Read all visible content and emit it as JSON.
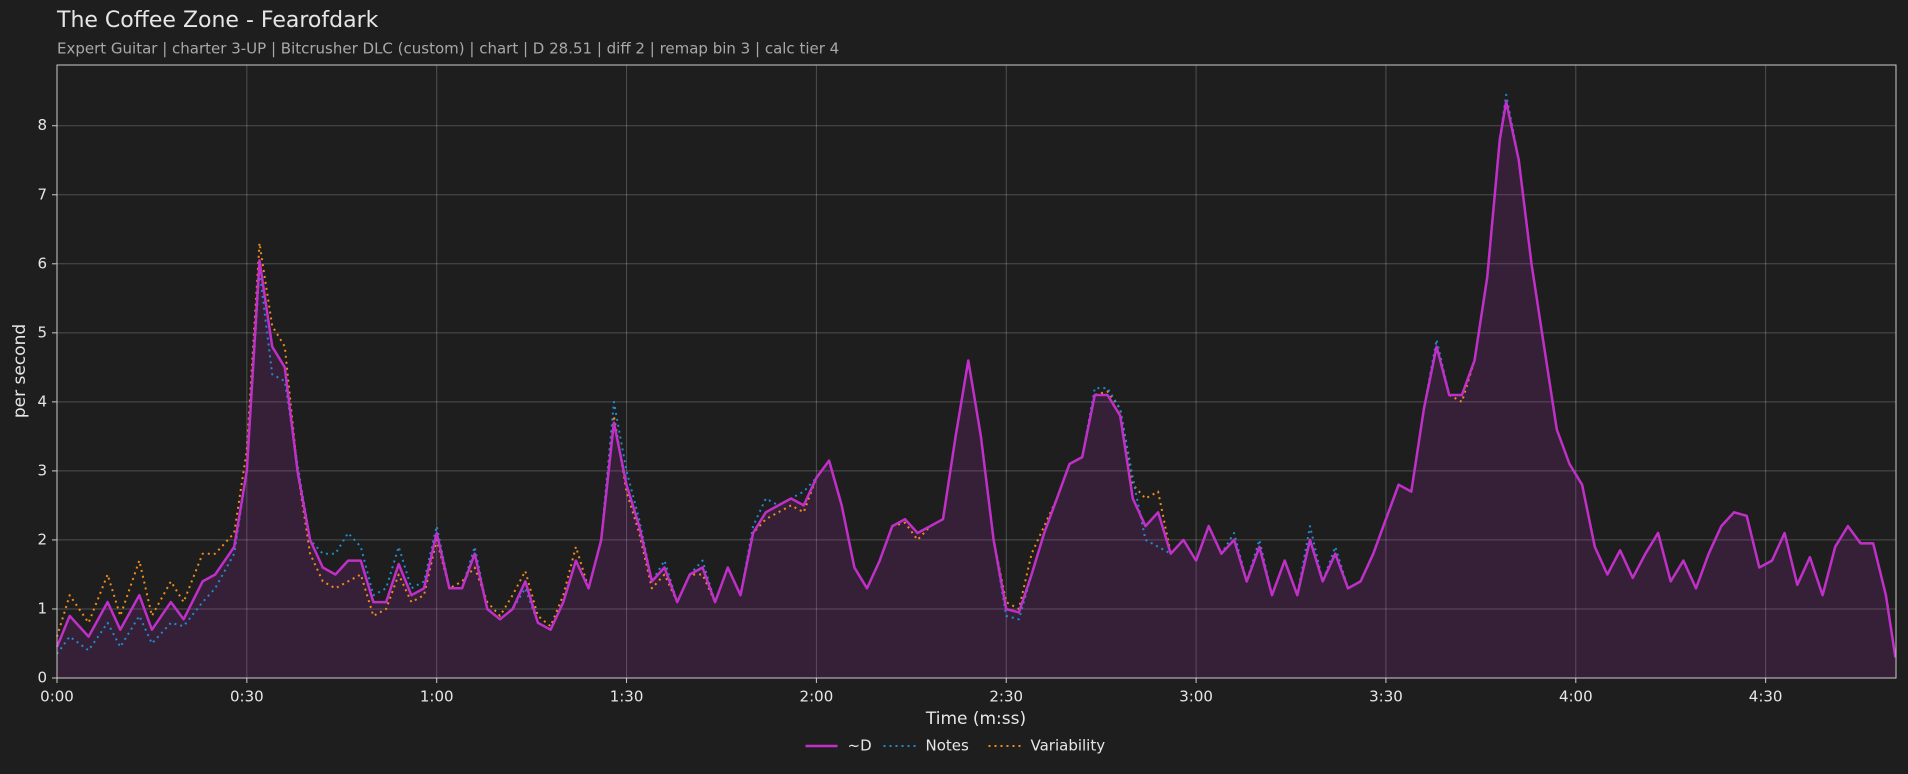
{
  "chart_data": {
    "type": "line",
    "title": "The Coffee Zone - Fearofdark",
    "subtitle": "Expert Guitar  |  charter 3-UP  |  Bitcrusher DLC (custom)  |  chart  |  D 28.51  |  diff 2  |  remap bin 3  |  calc tier 4",
    "x_label": "Time (m:ss)",
    "y_label": "per second",
    "xlim": [
      0,
      290.6
    ],
    "ylim": [
      0,
      8.88
    ],
    "xticks": [
      {
        "value": 0,
        "label": "0:00"
      },
      {
        "value": 30,
        "label": "0:30"
      },
      {
        "value": 60,
        "label": "1:00"
      },
      {
        "value": 90,
        "label": "1:30"
      },
      {
        "value": 120,
        "label": "2:00"
      },
      {
        "value": 150,
        "label": "2:30"
      },
      {
        "value": 180,
        "label": "3:00"
      },
      {
        "value": 210,
        "label": "3:30"
      },
      {
        "value": 240,
        "label": "4:00"
      },
      {
        "value": 270,
        "label": "4:30"
      }
    ],
    "yticks": [
      0,
      1,
      2,
      3,
      4,
      5,
      6,
      7,
      8
    ],
    "grid": true,
    "legend": "bottom",
    "x": [
      0,
      2,
      5,
      8,
      10,
      13,
      15,
      18,
      20,
      23,
      25,
      28,
      30,
      32,
      34,
      36,
      38,
      40,
      42,
      44,
      46,
      48,
      50,
      52,
      54,
      56,
      58,
      60,
      62,
      64,
      66,
      68,
      70,
      72,
      74,
      76,
      78,
      80,
      82,
      84,
      86,
      88,
      90,
      92,
      94,
      96,
      98,
      100,
      102,
      104,
      106,
      108,
      110,
      112,
      114,
      116,
      118,
      120,
      122,
      124,
      126,
      128,
      130,
      132,
      134,
      136,
      138,
      140,
      142,
      144,
      146,
      148,
      150,
      152,
      154,
      156,
      158,
      160,
      162,
      164,
      166,
      168,
      170,
      172,
      174,
      176,
      178,
      180,
      182,
      184,
      186,
      188,
      190,
      192,
      194,
      196,
      198,
      200,
      202,
      204,
      206,
      208,
      210,
      212,
      214,
      216,
      218,
      220,
      222,
      224,
      226,
      228,
      229,
      231,
      233,
      235,
      237,
      239,
      241,
      243,
      245,
      247,
      249,
      251,
      253,
      255,
      257,
      259,
      261,
      263,
      265,
      267,
      269,
      271,
      273,
      275,
      277,
      279,
      281,
      283,
      285,
      287,
      289,
      290.5
    ],
    "series": [
      {
        "name": "~D",
        "color": "#c030c8",
        "linestyle": "solid",
        "fill": true,
        "values": [
          0.45,
          0.9,
          0.6,
          1.1,
          0.7,
          1.2,
          0.7,
          1.1,
          0.85,
          1.4,
          1.5,
          1.9,
          3.0,
          6.05,
          4.8,
          4.5,
          3.0,
          2.0,
          1.6,
          1.5,
          1.7,
          1.7,
          1.1,
          1.1,
          1.65,
          1.2,
          1.3,
          2.1,
          1.3,
          1.3,
          1.8,
          1.0,
          0.85,
          1.0,
          1.4,
          0.8,
          0.7,
          1.1,
          1.7,
          1.3,
          2.0,
          3.7,
          2.8,
          2.2,
          1.4,
          1.6,
          1.1,
          1.5,
          1.6,
          1.1,
          1.6,
          1.2,
          2.1,
          2.4,
          2.5,
          2.6,
          2.5,
          2.9,
          3.15,
          2.5,
          1.6,
          1.3,
          1.7,
          2.2,
          2.3,
          2.1,
          2.2,
          2.3,
          3.5,
          4.6,
          3.5,
          2.0,
          1.0,
          0.95,
          1.5,
          2.1,
          2.6,
          3.1,
          3.2,
          4.1,
          4.1,
          3.8,
          2.6,
          2.2,
          2.4,
          1.8,
          2.0,
          1.7,
          2.2,
          1.8,
          2.0,
          1.4,
          1.9,
          1.2,
          1.7,
          1.2,
          2.0,
          1.4,
          1.8,
          1.3,
          1.4,
          1.8,
          2.3,
          2.8,
          2.7,
          3.9,
          4.8,
          4.1,
          4.1,
          4.6,
          5.8,
          7.8,
          8.35,
          7.5,
          6.0,
          4.8,
          3.6,
          3.1,
          2.8,
          1.9,
          1.5,
          1.85,
          1.45,
          1.8,
          2.1,
          1.4,
          1.7,
          1.3,
          1.8,
          2.2,
          2.4,
          2.35,
          1.6,
          1.7,
          2.1,
          1.35,
          1.75,
          1.2,
          1.9,
          2.2,
          1.95,
          1.95,
          1.2,
          0.3
        ]
      },
      {
        "name": "Notes",
        "color": "#1f8ad0",
        "linestyle": "dotted",
        "fill": false,
        "values": [
          0.35,
          0.6,
          0.4,
          0.8,
          0.45,
          0.9,
          0.5,
          0.8,
          0.75,
          1.1,
          1.3,
          1.8,
          3.0,
          5.9,
          4.4,
          4.3,
          3.1,
          2.0,
          1.8,
          1.8,
          2.1,
          1.9,
          1.2,
          1.3,
          1.9,
          1.3,
          1.4,
          2.2,
          1.3,
          1.3,
          1.9,
          1.0,
          0.85,
          1.0,
          1.3,
          0.8,
          0.7,
          1.1,
          1.7,
          1.3,
          2.0,
          4.0,
          3.0,
          2.3,
          1.4,
          1.7,
          1.1,
          1.5,
          1.7,
          1.1,
          1.6,
          1.2,
          2.2,
          2.6,
          2.5,
          2.6,
          2.7,
          2.9,
          3.15,
          2.5,
          1.6,
          1.3,
          1.7,
          2.2,
          2.3,
          2.1,
          2.2,
          2.3,
          3.5,
          4.6,
          3.5,
          2.0,
          0.9,
          0.85,
          1.5,
          2.1,
          2.6,
          3.1,
          3.2,
          4.2,
          4.2,
          3.9,
          2.9,
          2.0,
          1.9,
          1.8,
          2.0,
          1.7,
          2.2,
          1.8,
          2.1,
          1.4,
          2.0,
          1.2,
          1.7,
          1.2,
          2.2,
          1.4,
          1.9,
          1.3,
          1.4,
          1.8,
          2.3,
          2.8,
          2.7,
          3.9,
          4.9,
          4.1,
          4.1,
          4.6,
          5.8,
          7.8,
          8.45,
          7.5,
          6.0,
          4.8,
          3.6,
          3.1,
          2.8,
          1.9,
          1.5,
          1.85,
          1.45,
          1.8,
          2.1,
          1.4,
          1.7,
          1.3,
          1.8,
          2.2,
          2.4,
          2.35,
          1.6,
          1.7,
          2.1,
          1.35,
          1.75,
          1.2,
          1.9,
          2.2,
          1.95,
          1.95,
          1.2,
          0.3
        ]
      },
      {
        "name": "Variability",
        "color": "#f08a1c",
        "linestyle": "dotted",
        "fill": false,
        "values": [
          0.6,
          1.2,
          0.8,
          1.5,
          0.9,
          1.7,
          0.9,
          1.4,
          1.1,
          1.8,
          1.8,
          2.1,
          3.3,
          6.3,
          5.1,
          4.8,
          3.0,
          1.8,
          1.4,
          1.3,
          1.4,
          1.5,
          0.9,
          1.0,
          1.5,
          1.1,
          1.2,
          2.0,
          1.3,
          1.4,
          1.6,
          1.1,
          0.9,
          1.2,
          1.55,
          0.9,
          0.75,
          1.2,
          1.9,
          1.3,
          2.0,
          3.8,
          2.7,
          2.1,
          1.3,
          1.5,
          1.1,
          1.5,
          1.5,
          1.1,
          1.6,
          1.2,
          2.1,
          2.3,
          2.4,
          2.5,
          2.4,
          2.9,
          3.15,
          2.5,
          1.6,
          1.3,
          1.7,
          2.2,
          2.25,
          2.0,
          2.2,
          2.3,
          3.5,
          4.6,
          3.5,
          2.0,
          1.1,
          1.0,
          1.8,
          2.2,
          2.6,
          3.1,
          3.2,
          4.1,
          4.15,
          3.9,
          2.8,
          2.6,
          2.7,
          1.8,
          2.0,
          1.7,
          2.2,
          1.8,
          2.0,
          1.4,
          1.9,
          1.2,
          1.7,
          1.2,
          2.0,
          1.4,
          1.8,
          1.3,
          1.4,
          1.8,
          2.3,
          2.8,
          2.7,
          3.9,
          4.8,
          4.1,
          4.0,
          4.6,
          5.8,
          7.8,
          8.35,
          7.5,
          6.0,
          4.8,
          3.6,
          3.1,
          2.8,
          1.9,
          1.5,
          1.85,
          1.45,
          1.8,
          2.1,
          1.4,
          1.7,
          1.3,
          1.8,
          2.2,
          2.4,
          2.35,
          1.6,
          1.7,
          2.1,
          1.35,
          1.75,
          1.2,
          1.9,
          2.2,
          1.95,
          1.95,
          1.2,
          0.3
        ]
      }
    ]
  }
}
